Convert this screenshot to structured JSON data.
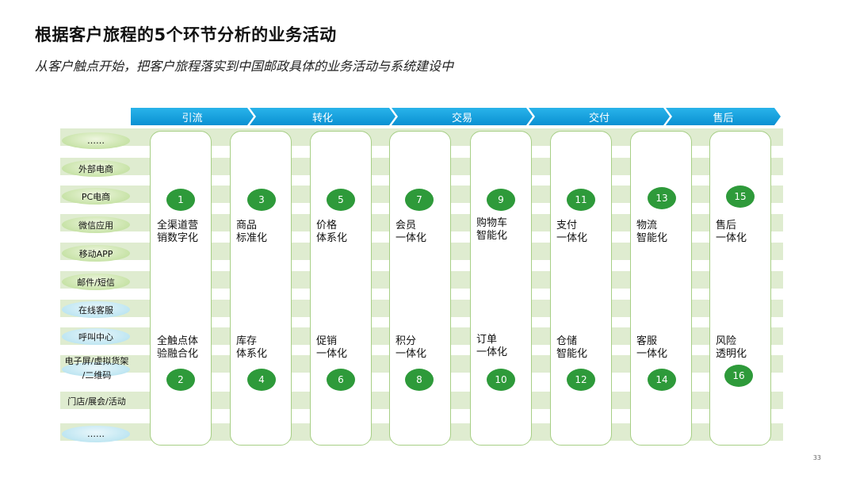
{
  "title": "根据客户旅程的5个环节分析的业务活动",
  "subtitle": "从客户触点开始，把客户旅程落实到中国邮政具体的业务活动与系统建设中",
  "stages": [
    "引流",
    "转化",
    "交易",
    "交付",
    "售后"
  ],
  "channels": [
    "……",
    "外部电商",
    "PC电商",
    "微信应用",
    "移动APP",
    "邮件/短信",
    "在线客服",
    "呼叫中心",
    "电子屏/虚拟货架",
    "/二维码",
    "门店/展会/活动",
    "……"
  ],
  "activities": [
    {
      "top": {
        "num": "1",
        "label": [
          "全渠道营",
          "销数字化"
        ]
      },
      "bottom": {
        "num": "2",
        "label": [
          "全触点体",
          "验融合化"
        ]
      }
    },
    {
      "top": {
        "num": "3",
        "label": [
          "商品",
          "标准化"
        ]
      },
      "bottom": {
        "num": "4",
        "label": [
          "库存",
          "体系化"
        ]
      }
    },
    {
      "top": {
        "num": "5",
        "label": [
          "价格",
          "体系化"
        ]
      },
      "bottom": {
        "num": "6",
        "label": [
          "促销",
          "一体化"
        ]
      }
    },
    {
      "top": {
        "num": "7",
        "label": [
          "会员",
          "一体化"
        ]
      },
      "bottom": {
        "num": "8",
        "label": [
          "积分",
          "一体化"
        ]
      }
    },
    {
      "top": {
        "num": "9",
        "label": [
          "购物车",
          "智能化"
        ]
      },
      "bottom": {
        "num": "10",
        "label": [
          "订单",
          "一体化"
        ]
      }
    },
    {
      "top": {
        "num": "11",
        "label": [
          "支付",
          "一体化"
        ]
      },
      "bottom": {
        "num": "12",
        "label": [
          "仓储",
          "智能化"
        ]
      }
    },
    {
      "top": {
        "num": "13",
        "label": [
          "物流",
          "智能化"
        ]
      },
      "bottom": {
        "num": "14",
        "label": [
          "客服",
          "一体化"
        ]
      }
    },
    {
      "top": {
        "num": "15",
        "label": [
          "售后",
          "一体化"
        ]
      },
      "bottom": {
        "num": "16",
        "label": [
          "风险",
          "透明化"
        ]
      }
    }
  ],
  "page_number": "33",
  "colors": {
    "stage_blue": "#0a91d2",
    "circle_green": "#2e9a3a",
    "stripe_green": "#dfecd0"
  }
}
